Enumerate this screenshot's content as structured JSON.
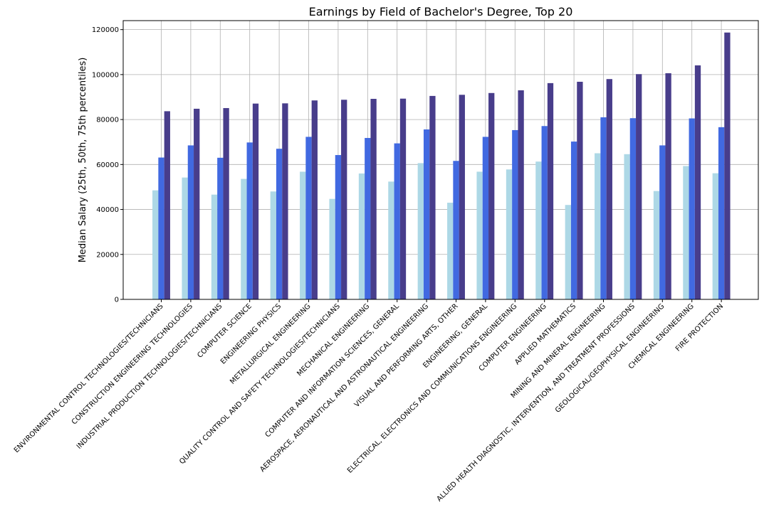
{
  "chart_data": {
    "type": "bar",
    "title": "Earnings by Field of Bachelor's Degree, Top 20",
    "xlabel": "",
    "ylabel": "Median Salary (25th, 50th, 75th percentiles)",
    "ylim": [
      0,
      124000
    ],
    "yticks": [
      0,
      20000,
      40000,
      60000,
      80000,
      100000,
      120000
    ],
    "grid": true,
    "categories": [
      "ENVIRONMENTAL CONTROL TECHNOLOGIES/TECHNICIANS",
      "CONSTRUCTION ENGINEERING TECHNOLOGIES",
      "INDUSTRIAL PRODUCTION TECHNOLOGIES/TECHNICIANS",
      "COMPUTER SCIENCE",
      "ENGINEERING PHYSICS",
      "METALLURGICAL ENGINEERING",
      "QUALITY CONTROL AND SAFETY TECHNOLOGIES/TECHNICIANS",
      "MECHANICAL ENGINEERING",
      "COMPUTER AND INFORMATION SCIENCES, GENERAL",
      "AEROSPACE, AERONAUTICAL AND ASTRONAUTICAL ENGINEERING",
      "VISUAL AND PERFORMING ARTS, OTHER",
      "ENGINEERING, GENERAL",
      "ELECTRICAL, ELECTRONICS AND COMMUNICATIONS ENGINEERING",
      "COMPUTER ENGINEERING",
      "APPLIED MATHEMATICS",
      "MINING AND MINERAL ENGINEERING",
      "ALLIED HEALTH DIAGNOSTIC, INTERVENTION, AND TREATMENT PROFESSIONS",
      "GEOLOGICAL/GEOPHYSICAL ENGINEERING",
      "CHEMICAL ENGINEERING",
      "FIRE PROTECTION"
    ],
    "series": [
      {
        "color": "#add8e6",
        "values": [
          48500,
          54200,
          46600,
          53600,
          48000,
          56800,
          44700,
          56000,
          52400,
          60600,
          43000,
          56800,
          57800,
          61300,
          42000,
          65000,
          64600,
          48200,
          59300,
          56100
        ]
      },
      {
        "color": "#4169e1",
        "values": [
          63100,
          68500,
          63000,
          69800,
          67000,
          72300,
          64200,
          71800,
          69400,
          75600,
          61600,
          72300,
          75300,
          77100,
          70200,
          81000,
          80600,
          68500,
          80500,
          76600
        ]
      },
      {
        "color": "#483d8b",
        "values": [
          83700,
          84800,
          85100,
          87100,
          87200,
          88500,
          88800,
          89200,
          89300,
          90500,
          91000,
          91800,
          93000,
          96200,
          96800,
          98000,
          100200,
          100600,
          104100,
          118700
        ]
      }
    ]
  }
}
